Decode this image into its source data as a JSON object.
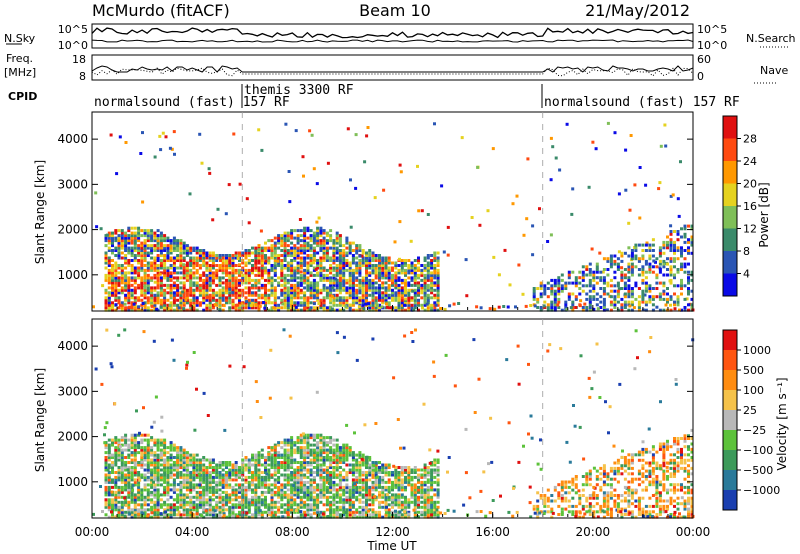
{
  "header": {
    "station": "McMurdo (fitACF)",
    "beam": "Beam 10",
    "date": "21/May/2012"
  },
  "top_panels": {
    "nsky_label": "N.Sky",
    "nsky_ticks": [
      "10^5",
      "10^0"
    ],
    "nsearch_label": "N.Search",
    "nsearch_ticks": [
      "10^5",
      "10^0"
    ],
    "freq_label_1": "Freq.",
    "freq_label_2": "[MHz]",
    "freq_ticks": [
      "18",
      "8"
    ],
    "nave_label": "Nave",
    "nave_ticks": [
      "60",
      "0"
    ],
    "cpid_label": "CPID",
    "cpid_segments": [
      {
        "label": "normalsound (fast) 157 RF",
        "start_h": 0,
        "end_h": 6.0
      },
      {
        "label": "themis 3300 RF",
        "start_h": 6.0,
        "end_h": 18.0
      },
      {
        "label": "normalsound (fast) 157 RF",
        "start_h": 18.0,
        "end_h": 24.0
      }
    ]
  },
  "chart_data": [
    {
      "type": "heatmap",
      "name": "power",
      "ylabel": "Slant Range [km]",
      "yticks": [
        1000,
        2000,
        3000,
        4000
      ],
      "ylim": [
        200,
        4600
      ],
      "xlim": [
        0,
        24
      ],
      "colorbar_label": "Power [dB]",
      "colorbar_ticks": [
        4,
        8,
        12,
        16,
        20,
        24,
        28
      ],
      "colors": [
        "#0a0ae6",
        "#2a55b4",
        "#3a8a6a",
        "#7fbf58",
        "#e5d21f",
        "#ff9800",
        "#ff4a10",
        "#e01010"
      ]
    },
    {
      "type": "heatmap",
      "name": "velocity",
      "ylabel": "Slant Range [km]",
      "yticks": [
        1000,
        2000,
        3000,
        4000
      ],
      "ylim": [
        200,
        4600
      ],
      "xlim": [
        0,
        24
      ],
      "xlabel": "Time UT",
      "xticks": [
        "00:00",
        "04:00",
        "08:00",
        "12:00",
        "16:00",
        "20:00",
        "00:00"
      ],
      "colorbar_label": "Velocity [m s⁻¹]",
      "colorbar_ticks": [
        "1000",
        "500",
        "100",
        "25",
        "−25",
        "−100",
        "−500",
        "−1000"
      ],
      "colors": [
        "#1a3fb0",
        "#2a7a9a",
        "#3c9a5a",
        "#5cc23a",
        "#b8b8b8",
        "#f5c24a",
        "#ff8c10",
        "#ff5510",
        "#e01010"
      ]
    }
  ]
}
